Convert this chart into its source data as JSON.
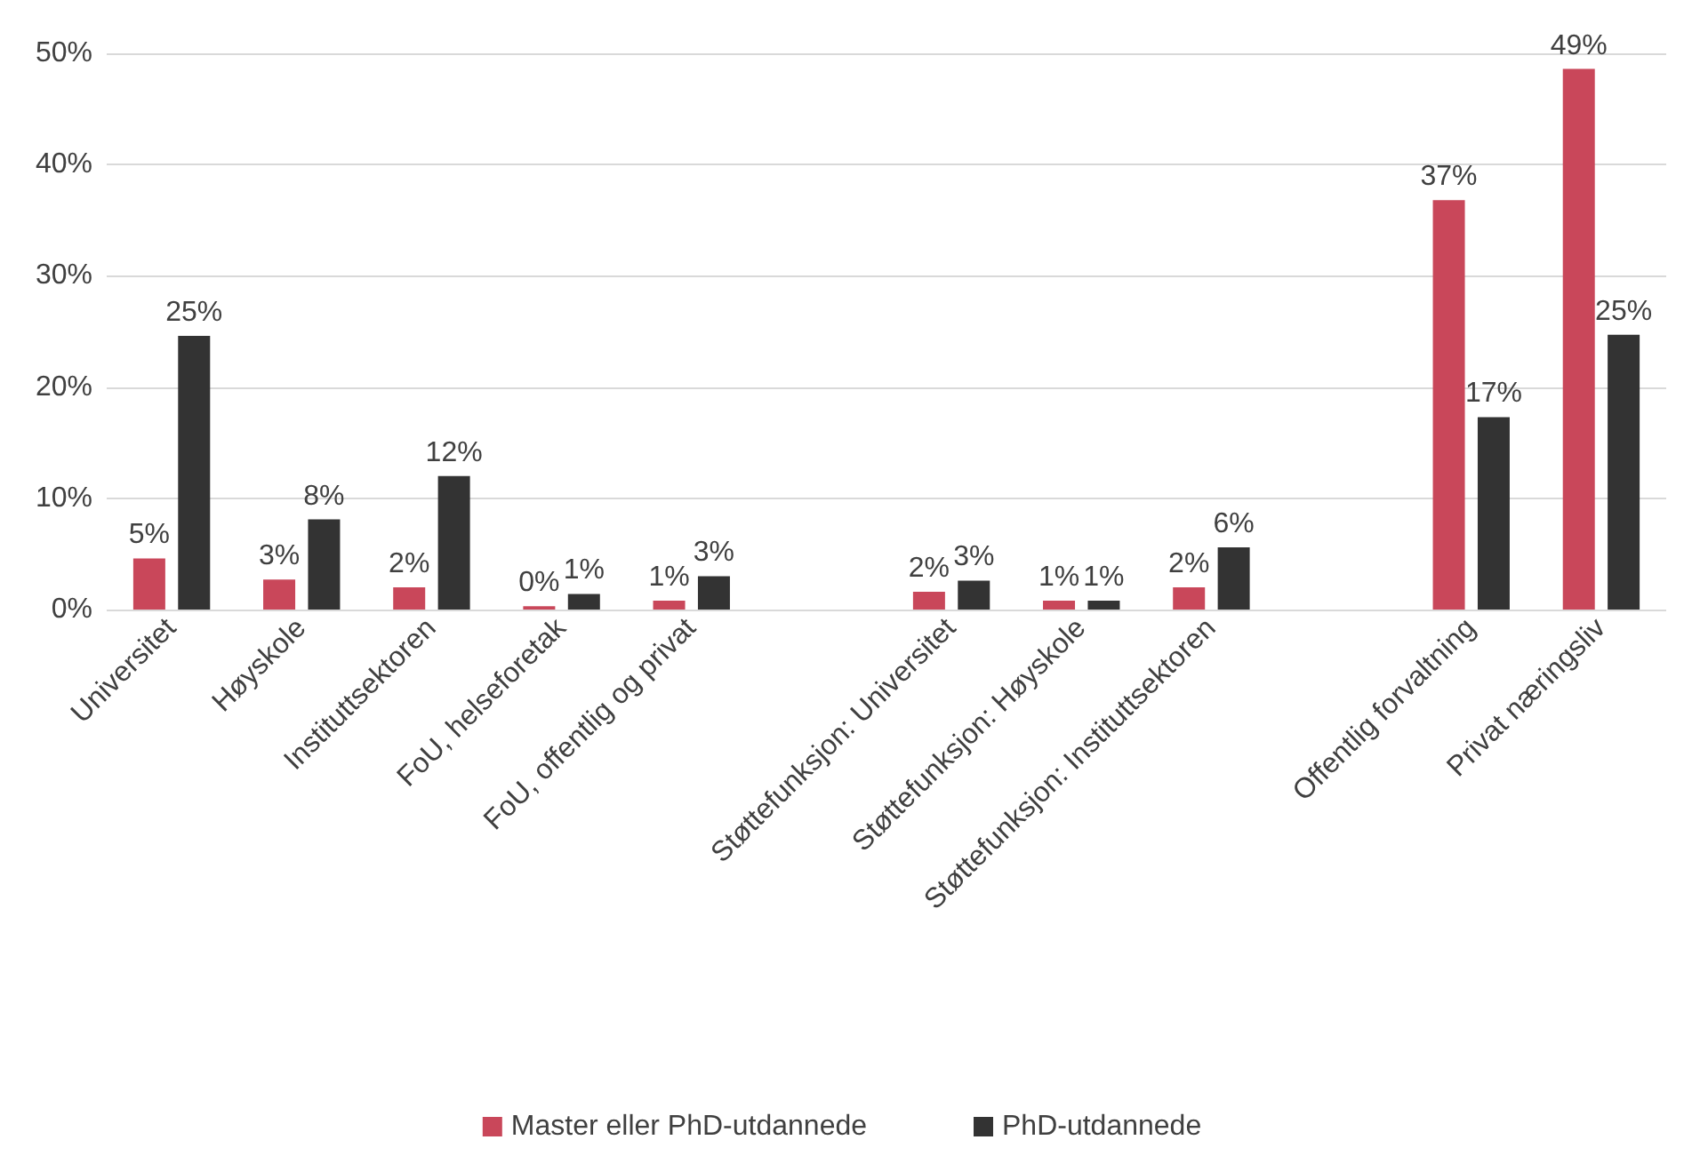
{
  "chart_data": {
    "type": "bar",
    "categories": [
      "Universitet",
      "Høyskole",
      "Instituttsektoren",
      "FoU, helseforetak",
      "FoU, offentlig og privat",
      null,
      "Støttefunksjon: Universitet",
      "Støttefunksjon: Høyskole",
      "Støttefunksjon: Instituttsektoren",
      null,
      "Offentlig forvaltning",
      "Privat næringsliv"
    ],
    "series": [
      {
        "name": "Master eller PhD-utdannede",
        "color": "#c9475a",
        "values": [
          4.6,
          2.7,
          2.0,
          0.3,
          0.8,
          null,
          1.6,
          0.8,
          2.0,
          null,
          36.8,
          48.6
        ],
        "value_labels": [
          "5%",
          "3%",
          "2%",
          "0%",
          "1%",
          null,
          "2%",
          "1%",
          "2%",
          null,
          "37%",
          "49%"
        ]
      },
      {
        "name": "PhD-utdannede",
        "color": "#333333",
        "values": [
          24.6,
          8.1,
          12.0,
          1.4,
          3.0,
          null,
          2.6,
          0.8,
          5.6,
          null,
          17.3,
          24.7
        ],
        "value_labels": [
          "25%",
          "8%",
          "12%",
          "1%",
          "3%",
          null,
          "3%",
          "1%",
          "6%",
          null,
          "17%",
          "25%"
        ]
      }
    ],
    "ylim": [
      0,
      50
    ],
    "yticks": [
      {
        "value": 0,
        "label": "0%"
      },
      {
        "value": 10,
        "label": "10%"
      },
      {
        "value": 20,
        "label": "20%"
      },
      {
        "value": 30,
        "label": "30%"
      },
      {
        "value": 40,
        "label": "40%"
      },
      {
        "value": 50,
        "label": "50%"
      }
    ],
    "grid": "y",
    "legend": "bottom"
  }
}
